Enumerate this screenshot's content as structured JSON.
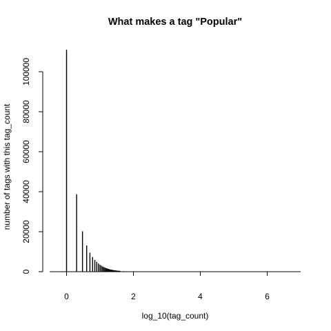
{
  "chart_data": {
    "type": "bar",
    "title": "What makes a tag \"Popular\"",
    "xlabel": "log_10(tag_count)",
    "ylabel": "number of tags with this tag_count",
    "xlim": [
      -0.5,
      7
    ],
    "ylim": [
      0,
      110000
    ],
    "x_ticks": [
      0,
      2,
      4,
      6
    ],
    "y_ticks": [
      0,
      20000,
      40000,
      60000,
      80000,
      100000
    ],
    "grid": false,
    "legend": "none",
    "line_color": "#000000",
    "x": [
      0,
      0.301,
      0.477,
      0.602,
      0.699,
      0.778,
      0.845,
      0.903,
      0.954,
      1.0,
      1.041,
      1.079,
      1.114,
      1.146,
      1.176,
      1.204,
      1.23,
      1.255,
      1.279,
      1.301,
      1.322,
      1.342,
      1.362,
      1.38,
      1.398,
      1.415,
      1.431,
      1.447,
      1.462,
      1.477,
      1.491,
      1.505,
      1.519,
      1.531,
      1.544,
      1.556,
      1.568,
      1.58,
      1.591,
      1.602,
      1.7,
      1.8,
      1.9,
      2.0,
      2.2,
      2.4,
      2.6,
      2.8,
      3.0,
      3.3,
      3.6,
      4.0,
      4.5,
      5.0,
      5.5,
      6.0,
      6.3
    ],
    "values": [
      111000,
      38700,
      20200,
      13100,
      9500,
      7300,
      5900,
      4900,
      4100,
      3500,
      3000,
      2600,
      2300,
      2050,
      1850,
      1650,
      1500,
      1370,
      1250,
      1150,
      1060,
      980,
      910,
      850,
      790,
      740,
      690,
      650,
      610,
      580,
      550,
      520,
      490,
      465,
      440,
      420,
      400,
      385,
      370,
      355,
      260,
      190,
      140,
      110,
      70,
      45,
      30,
      20,
      14,
      9,
      6,
      4,
      2,
      1,
      1,
      1,
      1
    ]
  }
}
